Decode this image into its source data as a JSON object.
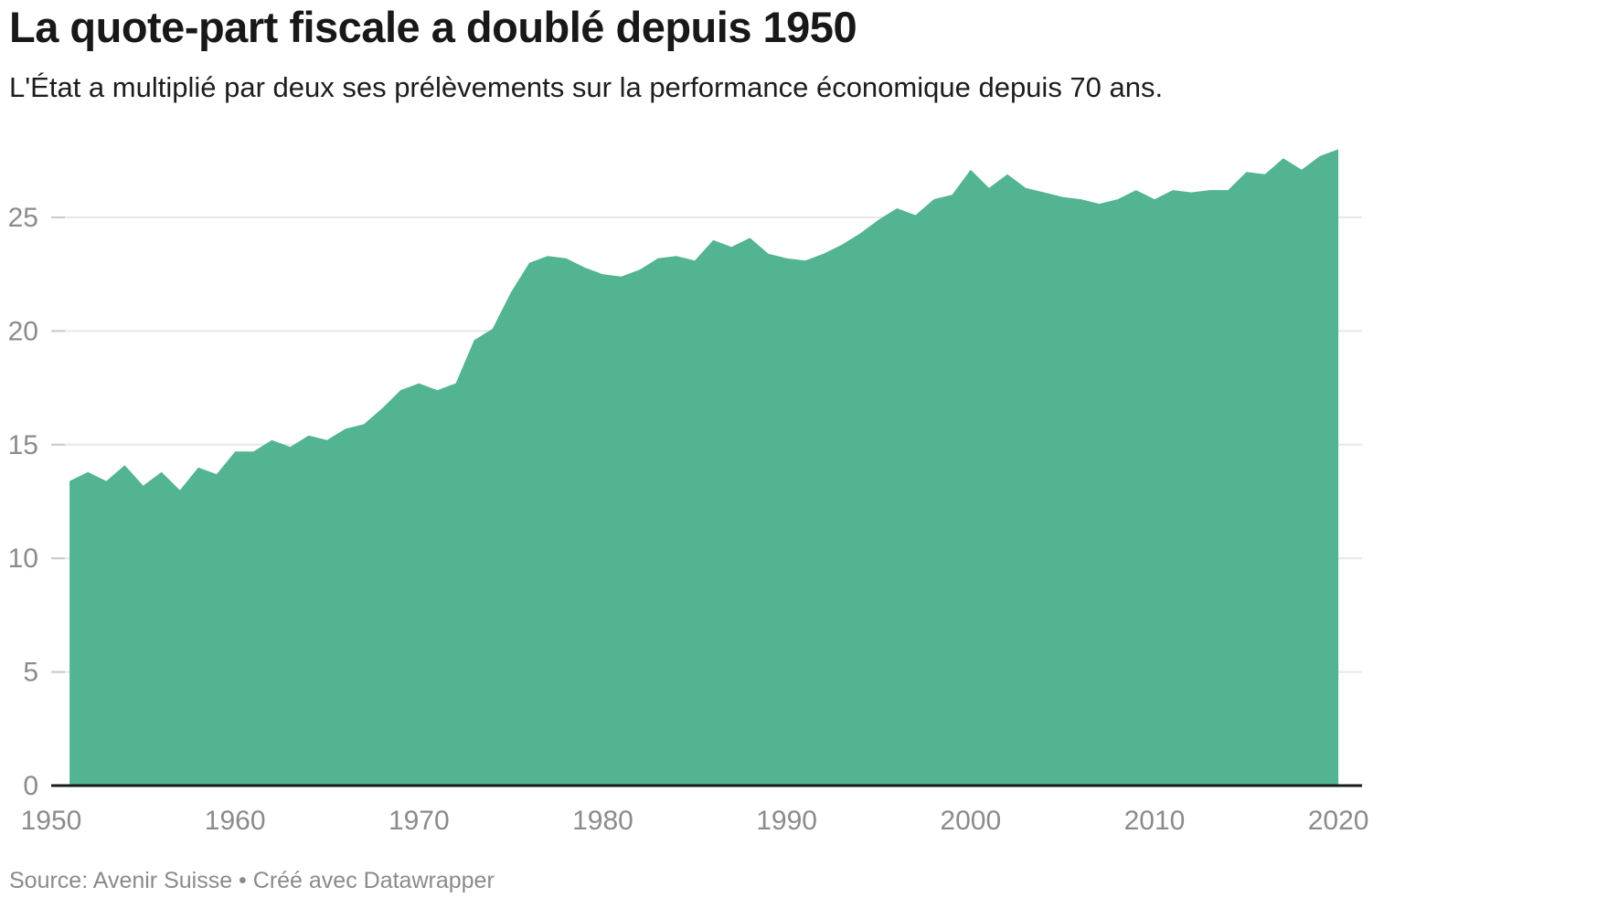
{
  "header": {
    "title": "La quote-part fiscale a doublé depuis 1950",
    "subtitle": "L'État a multiplié par deux ses prélèvements sur la performance économique depuis 70 ans."
  },
  "footer": {
    "source": "Source: Avenir Suisse • Créé avec Datawrapper"
  },
  "chart_data": {
    "type": "area",
    "title": "La quote-part fiscale a doublé depuis 1950",
    "subtitle": "L'État a multiplié par deux ses prélèvements sur la performance économique depuis 70 ans.",
    "source": "Source: Avenir Suisse • Créé avec Datawrapper",
    "xlabel": "",
    "ylabel": "",
    "xlim": [
      1950,
      2021
    ],
    "ylim": [
      0,
      29
    ],
    "grid": true,
    "legend": false,
    "fill_color": "#53b492",
    "axis_line_color": "#1a1a1a",
    "grid_color": "#e8e8e8",
    "tick_color": "#c9c9c9",
    "label_color": "#8b8b8b",
    "xticks": [
      1950,
      1960,
      1970,
      1980,
      1990,
      2000,
      2010,
      2020
    ],
    "yticks": [
      0,
      5,
      10,
      15,
      20,
      25
    ],
    "x": [
      1951,
      1952,
      1953,
      1954,
      1955,
      1956,
      1957,
      1958,
      1959,
      1960,
      1961,
      1962,
      1963,
      1964,
      1965,
      1966,
      1967,
      1968,
      1969,
      1970,
      1971,
      1972,
      1973,
      1974,
      1975,
      1976,
      1977,
      1978,
      1979,
      1980,
      1981,
      1982,
      1983,
      1984,
      1985,
      1986,
      1987,
      1988,
      1989,
      1990,
      1991,
      1992,
      1993,
      1994,
      1995,
      1996,
      1997,
      1998,
      1999,
      2000,
      2001,
      2002,
      2003,
      2004,
      2005,
      2006,
      2007,
      2008,
      2009,
      2010,
      2011,
      2012,
      2013,
      2014,
      2015,
      2016,
      2017,
      2018,
      2019,
      2020
    ],
    "y": [
      13.4,
      13.8,
      13.4,
      14.1,
      13.2,
      13.8,
      13.0,
      14.0,
      13.7,
      14.7,
      14.7,
      15.2,
      14.9,
      15.4,
      15.2,
      15.7,
      15.9,
      16.6,
      17.4,
      17.7,
      17.4,
      17.7,
      19.6,
      20.1,
      21.7,
      23.0,
      23.3,
      23.2,
      22.8,
      22.5,
      22.4,
      22.7,
      23.2,
      23.3,
      23.1,
      24.0,
      23.7,
      24.1,
      23.4,
      23.2,
      23.1,
      23.4,
      23.8,
      24.3,
      24.9,
      25.4,
      25.1,
      25.8,
      26.0,
      27.1,
      26.3,
      26.9,
      26.3,
      26.1,
      25.9,
      25.8,
      25.6,
      25.8,
      26.2,
      25.8,
      26.2,
      26.1,
      26.2,
      26.2,
      27.0,
      26.9,
      27.6,
      27.1,
      27.7,
      28.0
    ]
  }
}
